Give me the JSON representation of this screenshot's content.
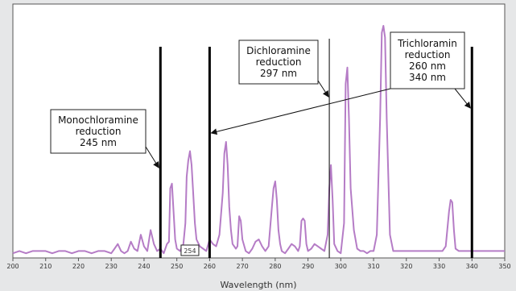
{
  "chart_data": {
    "type": "line",
    "title": "",
    "xlabel": "Wavelength (nm)",
    "ylabel": "",
    "xlim": [
      200,
      350
    ],
    "ylim": [
      0,
      100
    ],
    "grid": false,
    "xticks": [
      200,
      210,
      220,
      230,
      240,
      250,
      260,
      270,
      280,
      290,
      300,
      310,
      320,
      330,
      340,
      350
    ],
    "series": [
      {
        "name": "",
        "color": "#b57cc6",
        "x": [
          200,
          202,
          204,
          206,
          208,
          210,
          212,
          214,
          216,
          218,
          220,
          222,
          224,
          226,
          228,
          230,
          231,
          232,
          233,
          234,
          235,
          236,
          237,
          238,
          239,
          240,
          241,
          242,
          243,
          244,
          245,
          246,
          247,
          247.6,
          248,
          248.5,
          249,
          249.5,
          250,
          251,
          252,
          252.6,
          253,
          253.5,
          254,
          254.5,
          255,
          255.5,
          256,
          257,
          258,
          259,
          260,
          261,
          262,
          263,
          264,
          264.5,
          265,
          265.5,
          266,
          266.5,
          267,
          268,
          268.5,
          269,
          269.5,
          270,
          271,
          272,
          273,
          274,
          275,
          276,
          277,
          278,
          279,
          279.5,
          280,
          280.5,
          281,
          281.5,
          282,
          283,
          284,
          285,
          286,
          287,
          287.5,
          288,
          288.5,
          289,
          289.5,
          290,
          291,
          292,
          293,
          294,
          295,
          296,
          296.5,
          297,
          297.5,
          298,
          299,
          300,
          301,
          301.5,
          302,
          302.5,
          303,
          304,
          305,
          306,
          307,
          308,
          309,
          310,
          311,
          312,
          312.5,
          313,
          313.5,
          314,
          315,
          316,
          317,
          318,
          320,
          322,
          324,
          326,
          328,
          330,
          331,
          332,
          333,
          333.5,
          334,
          334.5,
          335,
          336,
          337,
          338,
          339,
          340,
          342,
          344,
          346,
          348,
          350
        ],
        "values": [
          2,
          3,
          2,
          3,
          3,
          3,
          2,
          3,
          3,
          2,
          3,
          3,
          2,
          3,
          3,
          2,
          4,
          6,
          3,
          2,
          3,
          7,
          4,
          3,
          10,
          5,
          3,
          12,
          6,
          3,
          4,
          2,
          6,
          7,
          30,
          32,
          20,
          8,
          4,
          3,
          6,
          15,
          35,
          42,
          46,
          40,
          28,
          15,
          8,
          5,
          4,
          3,
          8,
          6,
          5,
          10,
          28,
          45,
          50,
          40,
          22,
          12,
          6,
          4,
          5,
          18,
          16,
          8,
          3,
          2,
          4,
          7,
          8,
          5,
          3,
          5,
          22,
          30,
          33,
          25,
          12,
          6,
          3,
          2,
          4,
          6,
          5,
          3,
          5,
          16,
          17,
          16,
          6,
          3,
          4,
          6,
          5,
          4,
          3,
          10,
          30,
          40,
          25,
          6,
          3,
          2,
          15,
          75,
          82,
          60,
          30,
          12,
          4,
          3,
          3,
          2,
          3,
          3,
          10,
          60,
          97,
          100,
          95,
          60,
          10,
          3,
          3,
          3,
          3,
          3,
          3,
          3,
          3,
          3,
          3,
          5,
          20,
          25,
          24,
          12,
          4,
          3,
          3,
          3,
          3,
          3,
          3,
          3,
          3,
          3,
          3
        ]
      }
    ],
    "reference_lines": [
      {
        "x": 245,
        "weight": "thick"
      },
      {
        "x": 260,
        "weight": "thick"
      },
      {
        "x": 296.5,
        "weight": "thin"
      },
      {
        "x": 340,
        "weight": "thick"
      }
    ],
    "annotations": [
      {
        "id": "mono",
        "lines": [
          "Monochloramine",
          "reduction",
          "245 nm"
        ],
        "arrow_to_line": 0
      },
      {
        "id": "di",
        "lines": [
          "Dichloramine",
          "reduction",
          "297 nm"
        ],
        "arrow_to_line": 2
      },
      {
        "id": "tri",
        "lines": [
          "Trichloramin",
          "reduction",
          "260 nm",
          "340 nm"
        ],
        "arrow_to_lines": [
          1,
          3
        ]
      }
    ],
    "marker": {
      "x": 254,
      "label": "254"
    }
  }
}
